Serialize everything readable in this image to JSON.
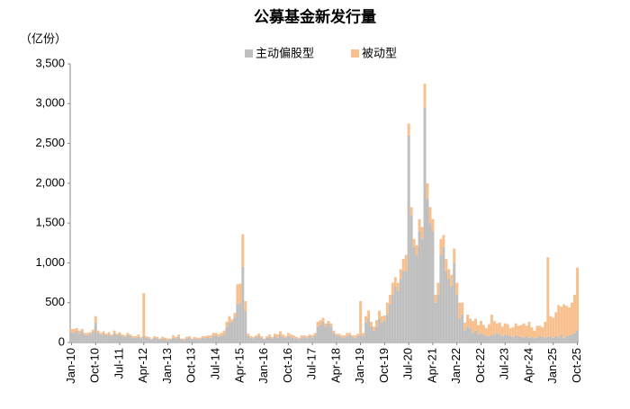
{
  "chart_data": {
    "type": "stacked_bar",
    "title": "公募基金新发行量",
    "y_label": "（亿份）",
    "categories": [
      "Jan-10",
      null,
      null,
      null,
      null,
      null,
      null,
      null,
      null,
      "Oct-10",
      null,
      null,
      null,
      null,
      null,
      null,
      null,
      null,
      "Jul-11",
      null,
      null,
      null,
      null,
      null,
      null,
      null,
      null,
      "Apr-12",
      null,
      null,
      null,
      null,
      null,
      null,
      null,
      null,
      "Jan-13",
      null,
      null,
      null,
      null,
      null,
      null,
      null,
      null,
      "Oct-13",
      null,
      null,
      null,
      null,
      null,
      null,
      null,
      null,
      "Jul-14",
      null,
      null,
      null,
      null,
      null,
      null,
      null,
      null,
      "Apr-15",
      null,
      null,
      null,
      null,
      null,
      null,
      null,
      null,
      "Jan-16",
      null,
      null,
      null,
      null,
      null,
      null,
      null,
      null,
      "Oct-16",
      null,
      null,
      null,
      null,
      null,
      null,
      null,
      null,
      "Jul-17",
      null,
      null,
      null,
      null,
      null,
      null,
      null,
      null,
      "Apr-18",
      null,
      null,
      null,
      null,
      null,
      null,
      null,
      null,
      "Jan-19",
      null,
      null,
      null,
      null,
      null,
      null,
      null,
      null,
      "Oct-19",
      null,
      null,
      null,
      null,
      null,
      null,
      null,
      null,
      "Jul-20",
      null,
      null,
      null,
      null,
      null,
      null,
      null,
      null,
      "Apr-21",
      null,
      null,
      null,
      null,
      null,
      null,
      null,
      null,
      "Jan-22",
      null,
      null,
      null,
      null,
      null,
      null,
      null,
      null,
      "Oct-22",
      null,
      null,
      null,
      null,
      null,
      null,
      null,
      null,
      "Jul-23",
      null,
      null,
      null,
      null,
      null,
      null,
      null,
      null,
      "Apr-24",
      null,
      null,
      null,
      null,
      null,
      null,
      null,
      null,
      "Jan-25",
      null,
      null,
      null,
      null,
      null,
      null,
      null,
      null,
      "Oct-25"
    ],
    "series": [
      {
        "name": "主动偏股型",
        "color": "#bfbfbf",
        "values": [
          130,
          120,
          150,
          110,
          140,
          100,
          90,
          110,
          130,
          250,
          120,
          100,
          110,
          90,
          100,
          80,
          120,
          90,
          100,
          80,
          70,
          90,
          80,
          60,
          60,
          70,
          50,
          80,
          60,
          50,
          40,
          60,
          50,
          40,
          50,
          40,
          30,
          40,
          60,
          50,
          70,
          40,
          30,
          50,
          60,
          40,
          50,
          40,
          40,
          60,
          50,
          70,
          60,
          80,
          90,
          70,
          80,
          100,
          200,
          250,
          260,
          320,
          480,
          500,
          950,
          400,
          80,
          60,
          50,
          70,
          80,
          60,
          40,
          60,
          70,
          50,
          80,
          60,
          90,
          70,
          60,
          80,
          70,
          60,
          50,
          40,
          60,
          70,
          50,
          80,
          60,
          90,
          200,
          220,
          260,
          200,
          240,
          200,
          120,
          90,
          80,
          70,
          60,
          80,
          90,
          70,
          60,
          80,
          100,
          80,
          250,
          300,
          200,
          150,
          200,
          300,
          250,
          280,
          350,
          480,
          600,
          700,
          650,
          800,
          900,
          900,
          2600,
          1600,
          1200,
          1100,
          1400,
          1300,
          2950,
          1800,
          1500,
          1400,
          500,
          600,
          1100,
          1200,
          900,
          800,
          700,
          1000,
          600,
          300,
          350,
          150,
          200,
          180,
          120,
          150,
          100,
          120,
          100,
          80,
          80,
          100,
          90,
          120,
          100,
          80,
          90,
          100,
          80,
          70,
          90,
          80,
          70,
          60,
          80,
          60,
          70,
          50,
          60,
          80,
          70,
          60,
          70,
          80,
          60,
          80,
          70,
          100,
          60,
          80,
          90,
          100,
          120,
          150
        ]
      },
      {
        "name": "被动型",
        "color": "#f8c08f",
        "values": [
          40,
          50,
          30,
          40,
          30,
          20,
          30,
          20,
          30,
          80,
          30,
          20,
          30,
          20,
          30,
          20,
          30,
          20,
          30,
          20,
          20,
          30,
          20,
          20,
          20,
          30,
          20,
          540,
          20,
          20,
          10,
          20,
          20,
          10,
          20,
          20,
          20,
          10,
          30,
          20,
          30,
          10,
          20,
          20,
          20,
          10,
          20,
          20,
          20,
          20,
          30,
          20,
          30,
          40,
          30,
          30,
          40,
          50,
          60,
          80,
          30,
          50,
          250,
          240,
          410,
          120,
          30,
          20,
          20,
          20,
          30,
          20,
          10,
          20,
          30,
          20,
          30,
          40,
          50,
          30,
          20,
          40,
          30,
          30,
          20,
          20,
          30,
          20,
          30,
          20,
          30,
          30,
          60,
          60,
          50,
          40,
          30,
          40,
          30,
          20,
          30,
          20,
          30,
          40,
          30,
          20,
          30,
          30,
          420,
          40,
          80,
          100,
          60,
          50,
          80,
          100,
          80,
          60,
          150,
          120,
          150,
          120,
          100,
          120,
          150,
          200,
          150,
          100,
          100,
          120,
          150,
          150,
          300,
          200,
          200,
          150,
          100,
          150,
          200,
          150,
          150,
          120,
          150,
          180,
          150,
          200,
          150,
          100,
          150,
          120,
          150,
          150,
          120,
          150,
          120,
          100,
          150,
          250,
          180,
          120,
          150,
          120,
          150,
          130,
          100,
          120,
          150,
          130,
          150,
          180,
          130,
          200,
          120,
          100,
          150,
          130,
          120,
          200,
          1000,
          250,
          250,
          300,
          400,
          350,
          420,
          380,
          350,
          400,
          480,
          790
        ]
      }
    ],
    "ylim": [
      0,
      3500
    ],
    "yticks": [
      0,
      500,
      {
        "value": 1000,
        "label": "1,000"
      },
      {
        "value": 1500,
        "label": "1,500"
      },
      {
        "value": 2000,
        "label": "2,000"
      },
      {
        "value": 2500,
        "label": "2,500"
      },
      {
        "value": 3000,
        "label": "3,000"
      },
      {
        "value": 3500,
        "label": "3,500"
      }
    ],
    "grid": false
  }
}
